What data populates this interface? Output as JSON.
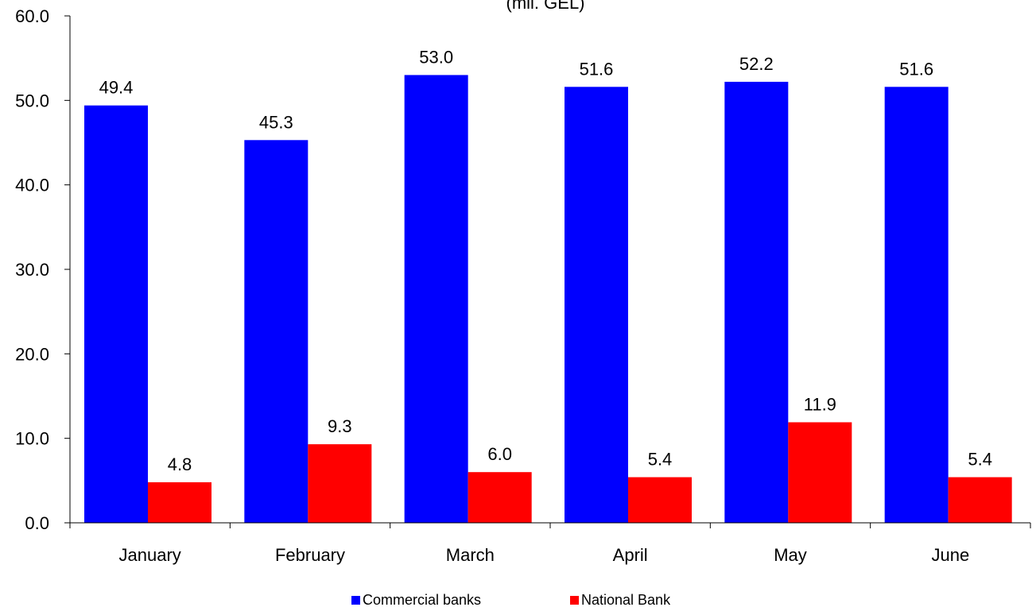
{
  "chart_data": {
    "type": "bar",
    "title": "",
    "subtitle": "(mil. GEL)",
    "xlabel": "",
    "ylabel": "",
    "categories": [
      "January",
      "February",
      "March",
      "April",
      "May",
      "June"
    ],
    "series": [
      {
        "name": "Commercial banks",
        "color": "#0000ff",
        "values": [
          49.4,
          45.3,
          53.0,
          51.6,
          52.2,
          51.6
        ],
        "labels": [
          "49.4",
          "45.3",
          "53.0",
          "51.6",
          "52.2",
          "51.6"
        ]
      },
      {
        "name": "National Bank",
        "color": "#ff0000",
        "values": [
          4.8,
          9.3,
          6.0,
          5.4,
          11.9,
          5.4
        ],
        "labels": [
          "4.8",
          "9.3",
          "6.0",
          "5.4",
          "11.9",
          "5.4"
        ]
      }
    ],
    "ylim": [
      0,
      60
    ],
    "yticks": [
      0,
      10,
      20,
      30,
      40,
      50,
      60
    ],
    "ytick_labels": [
      "0.0",
      "10.0",
      "20.0",
      "30.0",
      "40.0",
      "50.0",
      "60.0"
    ],
    "grid": false,
    "legend_position": "bottom-center"
  }
}
